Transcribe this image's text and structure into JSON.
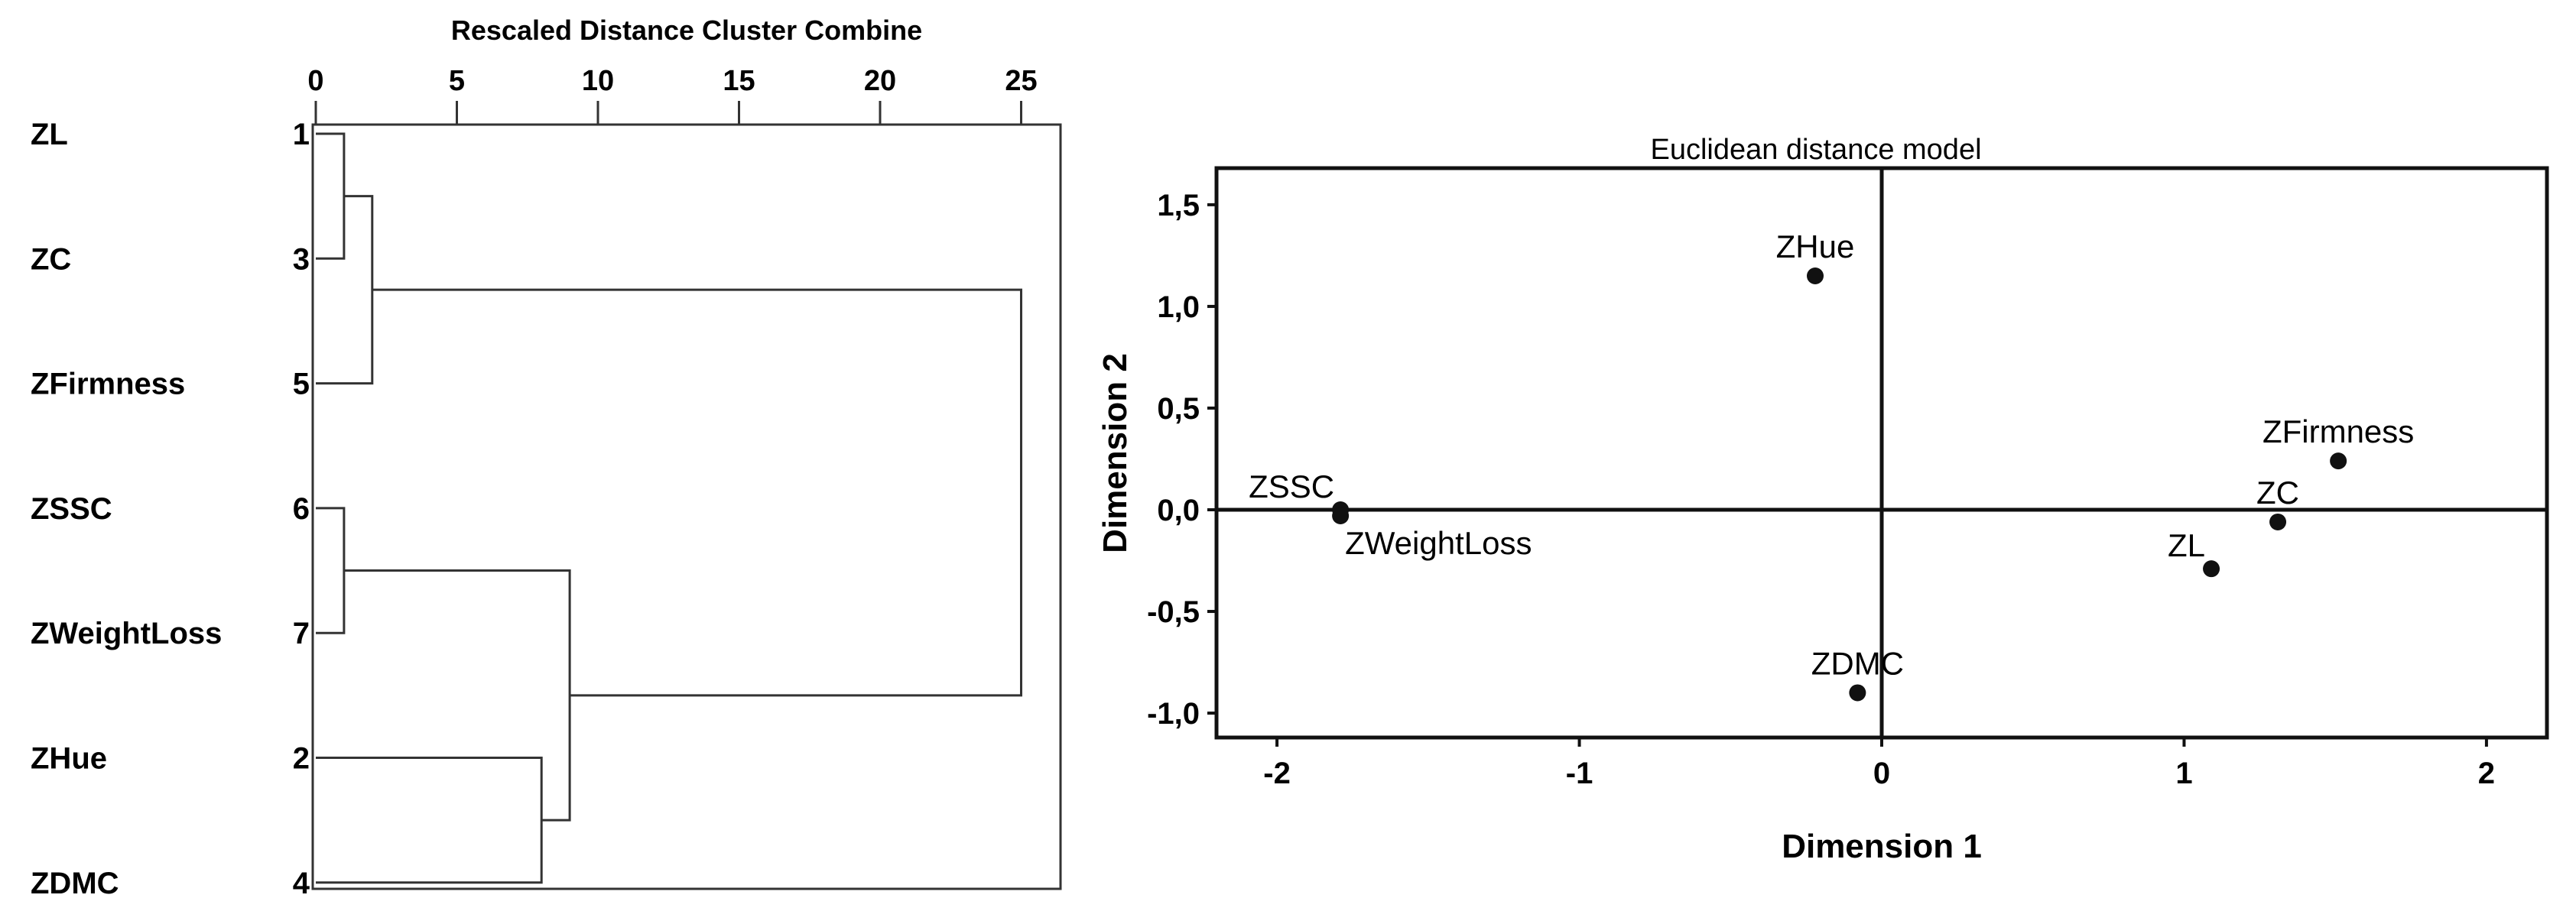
{
  "chart_data": [
    {
      "type": "dendrogram",
      "title": "Rescaled Distance Cluster Combine",
      "xlim": [
        0,
        25
      ],
      "x_ticks": [
        "0",
        "5",
        "10",
        "15",
        "20",
        "25"
      ],
      "leaves": [
        {
          "label": "ZL",
          "id": "1"
        },
        {
          "label": "ZC",
          "id": "3"
        },
        {
          "label": "ZFirmness",
          "id": "5"
        },
        {
          "label": "ZSSC",
          "id": "6"
        },
        {
          "label": "ZWeightLoss",
          "id": "7"
        },
        {
          "label": "ZHue",
          "id": "2"
        },
        {
          "label": "ZDMC",
          "id": "4"
        }
      ],
      "merges": [
        {
          "a": "L0",
          "b": "L1",
          "distance": 1.0
        },
        {
          "a": "L3",
          "b": "L4",
          "distance": 1.0
        },
        {
          "a": "M0",
          "b": "L2",
          "distance": 2.0
        },
        {
          "a": "L5",
          "b": "L6",
          "distance": 8.0
        },
        {
          "a": "M1",
          "b": "M3",
          "distance": 9.0
        },
        {
          "a": "M2",
          "b": "M4",
          "distance": 25.0
        }
      ]
    },
    {
      "type": "scatter",
      "title": "Euclidean distance model",
      "xlabel": "Dimension 1",
      "ylabel": "Dimension 2",
      "xlim": [
        -2.2,
        2.2
      ],
      "ylim": [
        -1.12,
        1.68
      ],
      "x_ticks": [
        "-2",
        "-1",
        "0",
        "1",
        "2"
      ],
      "x_tick_values": [
        -2,
        -1,
        0,
        1,
        2
      ],
      "y_ticks": [
        "1,5",
        "1,0",
        "0,5",
        "0,0",
        "-0,5",
        "-1,0"
      ],
      "y_tick_values": [
        1.5,
        1.0,
        0.5,
        0.0,
        -0.5,
        -1.0
      ],
      "points": [
        {
          "label": "ZHue",
          "x": -0.22,
          "y": 1.15,
          "label_pos": "above"
        },
        {
          "label": "ZFirmness",
          "x": 1.51,
          "y": 0.24,
          "label_pos": "above"
        },
        {
          "label": "ZSSC",
          "x": -1.79,
          "y": 0.0,
          "label_pos": "above-left"
        },
        {
          "label": "ZWeightLoss",
          "x": -1.79,
          "y": -0.03,
          "label_pos": "below-right"
        },
        {
          "label": "ZC",
          "x": 1.31,
          "y": -0.06,
          "label_pos": "above"
        },
        {
          "label": "ZL",
          "x": 1.09,
          "y": -0.29,
          "label_pos": "above-left"
        },
        {
          "label": "ZDMC",
          "x": -0.08,
          "y": -0.9,
          "label_pos": "above"
        }
      ]
    }
  ]
}
